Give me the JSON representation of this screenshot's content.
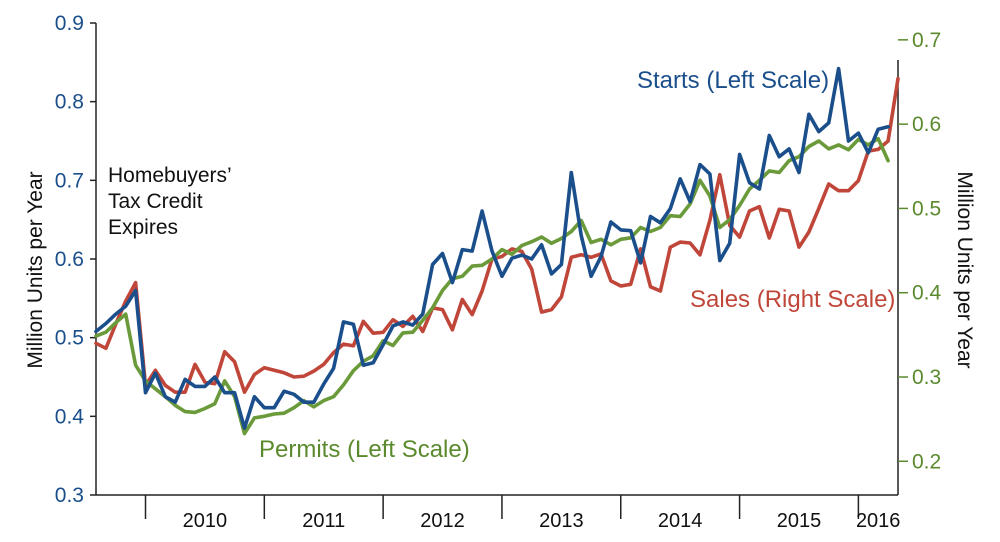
{
  "chart_data": {
    "type": "line",
    "title": "",
    "x_axis": {
      "tick_labels": [
        "2010",
        "2011",
        "2012",
        "2013",
        "2014",
        "2015",
        "2016"
      ],
      "start": "2009-08",
      "end": "2016-05"
    },
    "y_left": {
      "label": "Million Units  per Year",
      "range": [
        0.3,
        0.9
      ],
      "ticks": [
        "0.3",
        "0.4",
        "0.5",
        "0.6",
        "0.7",
        "0.8",
        "0.9"
      ]
    },
    "y_right": {
      "label": "Million Units  per Year",
      "range": [
        0.16,
        0.72
      ],
      "ticks": [
        "0.2",
        "0.3",
        "0.4",
        "0.5",
        "0.6",
        "0.7"
      ]
    },
    "grid": false,
    "annotations": {
      "tax_credit": [
        "Homebuyers’",
        "Tax Credit",
        "Expires"
      ]
    },
    "colors": {
      "starts": "#1b4f8c",
      "sales": "#c0463a",
      "permits": "#6a9a3a"
    },
    "series": [
      {
        "name": "Starts (Left Scale)",
        "axis": "left",
        "start": "2009-08",
        "values": [
          0.508,
          0.518,
          0.53,
          0.54,
          0.56,
          0.43,
          0.455,
          0.425,
          0.418,
          0.447,
          0.438,
          0.438,
          0.45,
          0.43,
          0.43,
          0.385,
          0.425,
          0.411,
          0.411,
          0.432,
          0.428,
          0.418,
          0.418,
          0.441,
          0.461,
          0.52,
          0.517,
          0.465,
          0.468,
          0.491,
          0.515,
          0.52,
          0.516,
          0.53,
          0.593,
          0.607,
          0.57,
          0.612,
          0.61,
          0.661,
          0.61,
          0.578,
          0.601,
          0.605,
          0.6,
          0.618,
          0.581,
          0.593,
          0.71,
          0.63,
          0.578,
          0.603,
          0.647,
          0.637,
          0.636,
          0.595,
          0.654,
          0.646,
          0.664,
          0.702,
          0.673,
          0.72,
          0.708,
          0.598,
          0.62,
          0.733,
          0.697,
          0.689,
          0.757,
          0.73,
          0.74,
          0.71,
          0.784,
          0.762,
          0.773,
          0.842,
          0.75,
          0.76,
          0.735,
          0.765,
          0.768
        ]
      },
      {
        "name": "Permits (Left Scale)",
        "axis": "left",
        "start": "2009-08",
        "values": [
          0.502,
          0.507,
          0.519,
          0.53,
          0.465,
          0.445,
          0.435,
          0.425,
          0.414,
          0.406,
          0.405,
          0.41,
          0.416,
          0.445,
          0.425,
          0.378,
          0.398,
          0.4,
          0.403,
          0.404,
          0.411,
          0.42,
          0.412,
          0.42,
          0.425,
          0.44,
          0.458,
          0.47,
          0.477,
          0.496,
          0.49,
          0.506,
          0.507,
          0.522,
          0.538,
          0.56,
          0.575,
          0.578,
          0.591,
          0.592,
          0.6,
          0.612,
          0.606,
          0.617,
          0.622,
          0.628,
          0.62,
          0.626,
          0.635,
          0.649,
          0.621,
          0.625,
          0.618,
          0.625,
          0.627,
          0.64,
          0.635,
          0.64,
          0.655,
          0.654,
          0.67,
          0.7,
          0.68,
          0.64,
          0.65,
          0.668,
          0.689,
          0.7,
          0.712,
          0.71,
          0.725,
          0.73,
          0.743,
          0.75,
          0.74,
          0.745,
          0.739,
          0.752,
          0.745,
          0.753,
          0.725
        ]
      },
      {
        "name": "Sales (Right Scale)",
        "axis": "right",
        "start": "2009-08",
        "values": [
          0.34,
          0.334,
          0.363,
          0.39,
          0.412,
          0.29,
          0.308,
          0.29,
          0.282,
          0.282,
          0.315,
          0.294,
          0.292,
          0.33,
          0.318,
          0.282,
          0.303,
          0.311,
          0.308,
          0.305,
          0.3,
          0.301,
          0.307,
          0.315,
          0.329,
          0.339,
          0.337,
          0.366,
          0.352,
          0.353,
          0.368,
          0.36,
          0.372,
          0.354,
          0.382,
          0.38,
          0.356,
          0.392,
          0.374,
          0.402,
          0.44,
          0.443,
          0.452,
          0.449,
          0.428,
          0.377,
          0.38,
          0.395,
          0.442,
          0.445,
          0.442,
          0.446,
          0.414,
          0.408,
          0.41,
          0.452,
          0.407,
          0.402,
          0.454,
          0.46,
          0.459,
          0.445,
          0.486,
          0.54,
          0.48,
          0.466,
          0.497,
          0.502,
          0.465,
          0.499,
          0.497,
          0.454,
          0.472,
          0.5,
          0.529,
          0.521,
          0.521,
          0.533,
          0.568,
          0.57,
          0.58,
          0.654
        ]
      }
    ]
  }
}
